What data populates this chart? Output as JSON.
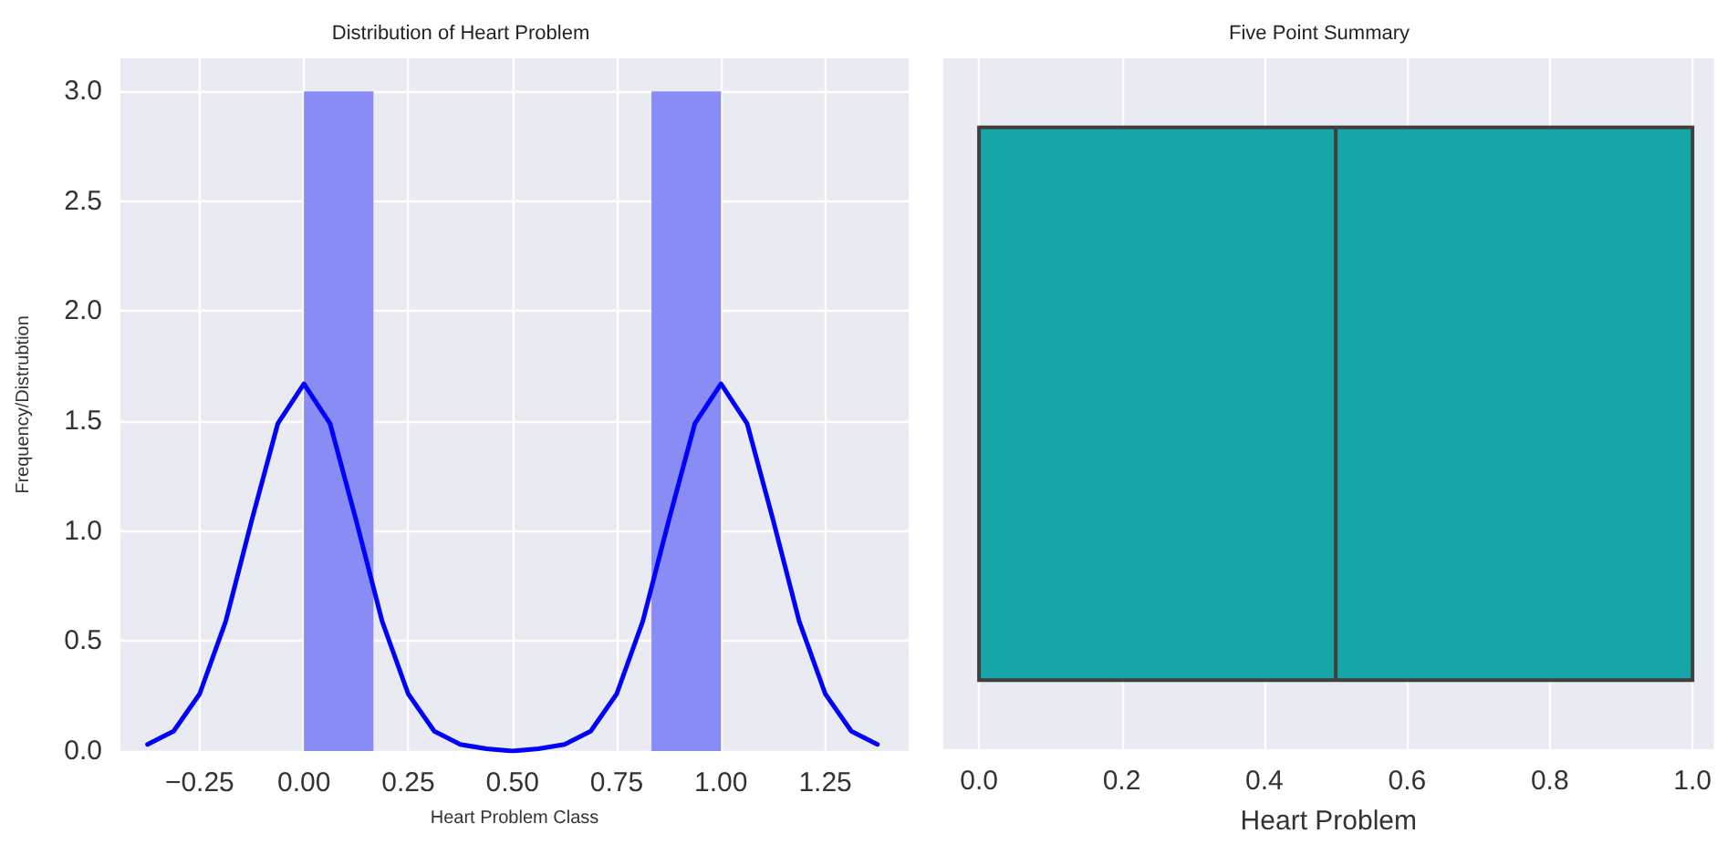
{
  "chart_data": [
    {
      "type": "histogram",
      "title": "Distribution of Heart Problem",
      "xlabel": "Heart Problem Class",
      "ylabel": "Frequency/Distrubtion",
      "bins": [
        0,
        0.1667,
        0.3333,
        0.5,
        0.6667,
        0.8333,
        1
      ],
      "series": [
        {
          "type": "histogram",
          "color": "#8a8cf5",
          "values": [
            3,
            0,
            0,
            0,
            0,
            3
          ]
        },
        {
          "type": "line",
          "color": "#0000ff",
          "x": [
            -0.375,
            -0.3125,
            -0.25,
            -0.1875,
            -0.125,
            -0.0625,
            0,
            0.0625,
            0.125,
            0.1875,
            0.25,
            0.3125,
            0.375,
            0.4375,
            0.5,
            0.5625,
            0.625,
            0.6875,
            0.75,
            0.8125,
            0.875,
            0.9375,
            1,
            1.0625,
            1.125,
            1.1875,
            1.25,
            1.3125,
            1.375
          ],
          "values": [
            0.03,
            0.09,
            0.26,
            0.59,
            1.05,
            1.49,
            1.67,
            1.49,
            1.05,
            0.59,
            0.26,
            0.09,
            0.03,
            0.01,
            0,
            0.01,
            0.03,
            0.09,
            0.26,
            0.59,
            1.05,
            1.49,
            1.67,
            1.49,
            1.05,
            0.59,
            0.26,
            0.09,
            0.03
          ]
        }
      ],
      "xlim": [
        -0.44,
        1.45
      ],
      "xticks": [
        {
          "value": -0.25,
          "label": "−0.25"
        },
        {
          "value": 0,
          "label": "0.00"
        },
        {
          "value": 0.25,
          "label": "0.25"
        },
        {
          "value": 0.5,
          "label": "0.50"
        },
        {
          "value": 0.75,
          "label": "0.75"
        },
        {
          "value": 1,
          "label": "1.00"
        },
        {
          "value": 1.25,
          "label": "1.25"
        }
      ],
      "ylim": [
        0,
        3.15
      ],
      "yticks": [
        {
          "value": 0,
          "label": "0.0"
        },
        {
          "value": 0.5,
          "label": "0.5"
        },
        {
          "value": 1,
          "label": "1.0"
        },
        {
          "value": 1.5,
          "label": "1.5"
        },
        {
          "value": 2,
          "label": "2.0"
        },
        {
          "value": 2.5,
          "label": "2.5"
        },
        {
          "value": 3,
          "label": "3.0"
        }
      ],
      "grid": true,
      "marker": "none",
      "line_style": "solid"
    },
    {
      "type": "box",
      "title": "Five Point Summary",
      "xlabel": "Heart Problem",
      "orientation": "horizontal",
      "categories": [
        null
      ],
      "color": "#17a6a7",
      "boxes": [
        {
          "low": 0,
          "q1": 0,
          "median": 0.5,
          "q3": 1,
          "high": 1
        }
      ],
      "xlim": [
        -0.05,
        1.03
      ],
      "xticks": [
        {
          "value": 0,
          "label": "0.0"
        },
        {
          "value": 0.2,
          "label": "0.2"
        },
        {
          "value": 0.4,
          "label": "0.4"
        },
        {
          "value": 0.6,
          "label": "0.6"
        },
        {
          "value": 0.8,
          "label": "0.8"
        },
        {
          "value": 1,
          "label": "1.0"
        }
      ],
      "grid": "x"
    }
  ]
}
